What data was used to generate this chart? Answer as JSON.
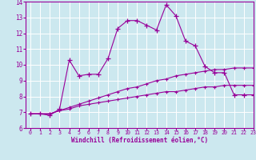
{
  "xlabel": "Windchill (Refroidissement éolien,°C)",
  "x_ticks": [
    0,
    1,
    2,
    3,
    4,
    5,
    6,
    7,
    8,
    9,
    10,
    11,
    12,
    13,
    14,
    15,
    16,
    17,
    18,
    19,
    20,
    21,
    22,
    23
  ],
  "ylim": [
    6,
    14
  ],
  "xlim": [
    -0.5,
    23
  ],
  "yticks": [
    6,
    7,
    8,
    9,
    10,
    11,
    12,
    13,
    14
  ],
  "background_color": "#cce8ef",
  "line_color": "#990099",
  "grid_color": "#ffffff",
  "line1_x": [
    0,
    1,
    2,
    3,
    4,
    5,
    6,
    7,
    8,
    9,
    10,
    11,
    12,
    13,
    14,
    15,
    16,
    17,
    18,
    19,
    20,
    21,
    22,
    23
  ],
  "line1_y": [
    6.9,
    6.9,
    6.9,
    7.1,
    7.2,
    7.4,
    7.5,
    7.6,
    7.7,
    7.8,
    7.9,
    8.0,
    8.1,
    8.2,
    8.3,
    8.3,
    8.4,
    8.5,
    8.6,
    8.6,
    8.7,
    8.7,
    8.7,
    8.7
  ],
  "line2_x": [
    0,
    1,
    2,
    3,
    4,
    5,
    6,
    7,
    8,
    9,
    10,
    11,
    12,
    13,
    14,
    15,
    16,
    17,
    18,
    19,
    20,
    21,
    22,
    23
  ],
  "line2_y": [
    6.9,
    6.9,
    6.9,
    7.1,
    7.3,
    7.5,
    7.7,
    7.9,
    8.1,
    8.3,
    8.5,
    8.6,
    8.8,
    9.0,
    9.1,
    9.3,
    9.4,
    9.5,
    9.6,
    9.7,
    9.7,
    9.8,
    9.8,
    9.8
  ],
  "line3_x": [
    0,
    1,
    2,
    3,
    4,
    5,
    6,
    7,
    8,
    9,
    10,
    11,
    12,
    13,
    14,
    15,
    16,
    17,
    18,
    19,
    20,
    21,
    22,
    23
  ],
  "line3_y": [
    6.9,
    6.9,
    6.8,
    7.2,
    10.3,
    9.3,
    9.4,
    9.4,
    10.4,
    12.3,
    12.8,
    12.8,
    12.5,
    12.2,
    13.8,
    13.1,
    11.5,
    11.2,
    9.9,
    9.5,
    9.5,
    8.1,
    8.1,
    8.1
  ]
}
